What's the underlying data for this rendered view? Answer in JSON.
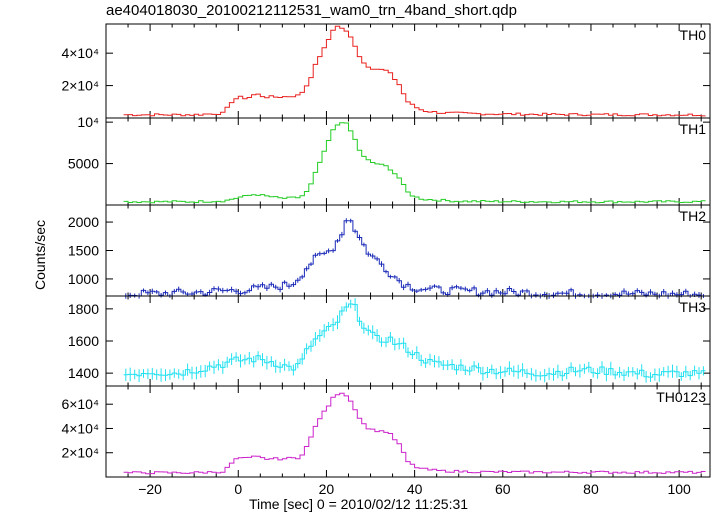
{
  "title": "ae404018030_20100212112531_wam0_trn_4band_short.qdp",
  "chart_data": {
    "type": "line",
    "title": "ae404018030_20100212112531_wam0_trn_4band_short.qdp",
    "xlabel": "Time [sec] 0 = 2010/02/12 11:25:31",
    "ylabel": "Counts/sec",
    "xlim": [
      -30,
      107
    ],
    "x_ticks": [
      -20,
      0,
      20,
      40,
      60,
      80,
      100
    ],
    "x_tick_labels": [
      "−20",
      "0",
      "20",
      "40",
      "60",
      "80",
      "100"
    ],
    "grid": false,
    "panels": [
      {
        "name": "TH0",
        "color": "#e8201e",
        "ylim": [
          0,
          58000
        ],
        "y_ticks": [
          20000,
          40000
        ],
        "y_tick_labels": [
          "2×10⁴",
          "4×10⁴"
        ],
        "error_bars": false,
        "x": [
          -26,
          -20,
          -10,
          -3,
          -2,
          0,
          2,
          4,
          6,
          10,
          14,
          16,
          18,
          20,
          21,
          22,
          24,
          26,
          28,
          30,
          34,
          37,
          38,
          40,
          42,
          46,
          55,
          70,
          85,
          100,
          106
        ],
        "y": [
          2000,
          2000,
          2000,
          3000,
          9000,
          13000,
          12000,
          15000,
          13000,
          13000,
          14000,
          22000,
          36000,
          45000,
          52000,
          57000,
          55000,
          48000,
          35000,
          31000,
          29000,
          19000,
          11000,
          7000,
          4500,
          3200,
          2600,
          2200,
          2100,
          2000,
          2000
        ]
      },
      {
        "name": "TH1",
        "color": "#22cc22",
        "ylim": [
          0,
          10500
        ],
        "y_ticks": [
          5000,
          10000
        ],
        "y_tick_labels": [
          "5000",
          "10⁴"
        ],
        "error_bars": false,
        "x": [
          -26,
          -10,
          -3,
          0,
          2,
          4,
          6,
          10,
          14,
          16,
          18,
          20,
          21,
          22,
          24,
          26,
          28,
          30,
          34,
          37,
          38,
          40,
          42,
          50,
          70,
          106
        ],
        "y": [
          400,
          400,
          500,
          900,
          1100,
          1300,
          1100,
          800,
          900,
          1800,
          4500,
          7000,
          8500,
          9500,
          10200,
          8500,
          6000,
          5200,
          4600,
          3000,
          1700,
          1000,
          700,
          450,
          400,
          400
        ]
      },
      {
        "name": "TH2",
        "color": "#1a2ab8",
        "ylim": [
          700,
          2300
        ],
        "y_ticks": [
          1000,
          1500,
          2000
        ],
        "y_tick_labels": [
          "1000",
          "1500",
          "2000"
        ],
        "error_bars": true,
        "x": [
          -26,
          -20,
          -10,
          -4,
          0,
          4,
          8,
          12,
          14,
          16,
          18,
          20,
          22,
          24,
          25,
          26,
          28,
          30,
          32,
          34,
          36,
          38,
          40,
          44,
          50,
          60,
          70,
          80,
          90,
          100,
          106
        ],
        "y": [
          730,
          740,
          760,
          790,
          800,
          820,
          860,
          900,
          1050,
          1250,
          1380,
          1450,
          1600,
          1900,
          2150,
          1950,
          1650,
          1420,
          1300,
          1150,
          1000,
          900,
          850,
          810,
          790,
          770,
          750,
          740,
          740,
          730,
          730
        ]
      },
      {
        "name": "TH3",
        "color": "#22e0f0",
        "ylim": [
          1320,
          1880
        ],
        "y_ticks": [
          1400,
          1600,
          1800
        ],
        "y_tick_labels": [
          "1400",
          "1600",
          "1800"
        ],
        "error_bars": true,
        "x": [
          -26,
          -20,
          -14,
          -8,
          -3,
          0,
          4,
          8,
          12,
          14,
          16,
          18,
          20,
          22,
          24,
          26,
          28,
          30,
          32,
          34,
          36,
          38,
          40,
          44,
          50,
          56,
          62,
          70,
          78,
          86,
          94,
          100,
          106
        ],
        "y": [
          1390,
          1410,
          1400,
          1430,
          1460,
          1480,
          1490,
          1470,
          1430,
          1450,
          1560,
          1620,
          1660,
          1700,
          1790,
          1830,
          1720,
          1640,
          1600,
          1620,
          1580,
          1560,
          1520,
          1460,
          1440,
          1420,
          1410,
          1400,
          1420,
          1410,
          1390,
          1400,
          1390
        ]
      },
      {
        "name": "TH0123",
        "color": "#cc22cc",
        "ylim": [
          0,
          75000
        ],
        "y_ticks": [
          20000,
          40000,
          60000
        ],
        "y_tick_labels": [
          "2×10⁴",
          "4×10⁴",
          "6×10⁴"
        ],
        "error_bars": false,
        "x": [
          -26,
          -10,
          -3,
          -2,
          0,
          2,
          4,
          6,
          10,
          14,
          16,
          18,
          20,
          22,
          24,
          26,
          28,
          30,
          34,
          37,
          38,
          40,
          42,
          46,
          55,
          70,
          106
        ],
        "y": [
          3500,
          3500,
          4500,
          10000,
          16000,
          15000,
          17000,
          15000,
          15000,
          16000,
          28000,
          46000,
          56000,
          68000,
          70000,
          60000,
          45000,
          39000,
          37000,
          25000,
          14000,
          8500,
          6500,
          5000,
          4200,
          4000,
          3800
        ]
      }
    ]
  }
}
